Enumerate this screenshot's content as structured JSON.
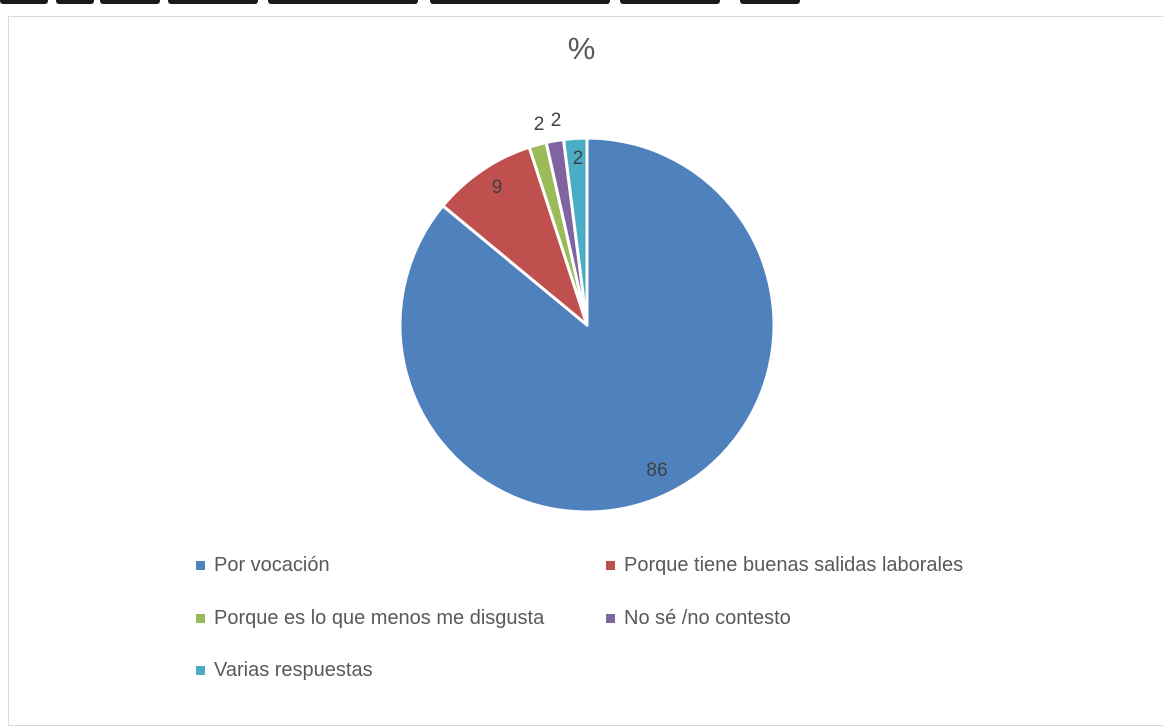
{
  "chart_data": {
    "type": "pie",
    "title": "%",
    "slices": [
      {
        "label": "Por vocación",
        "value": 86,
        "color": "#4f81bd"
      },
      {
        "label": "Porque tiene buenas salidas laborales",
        "value": 9,
        "color": "#c0504d"
      },
      {
        "label": "Porque es lo que menos me disgusta",
        "value": 1.5,
        "display": "2",
        "color": "#9bbb59"
      },
      {
        "label": "No sé /no contesto",
        "value": 1.5,
        "display": "2",
        "color": "#8064a2"
      },
      {
        "label": "Varias respuestas",
        "value": 2,
        "display": "2",
        "color": "#4bacc6"
      }
    ],
    "legend_position": "bottom"
  }
}
